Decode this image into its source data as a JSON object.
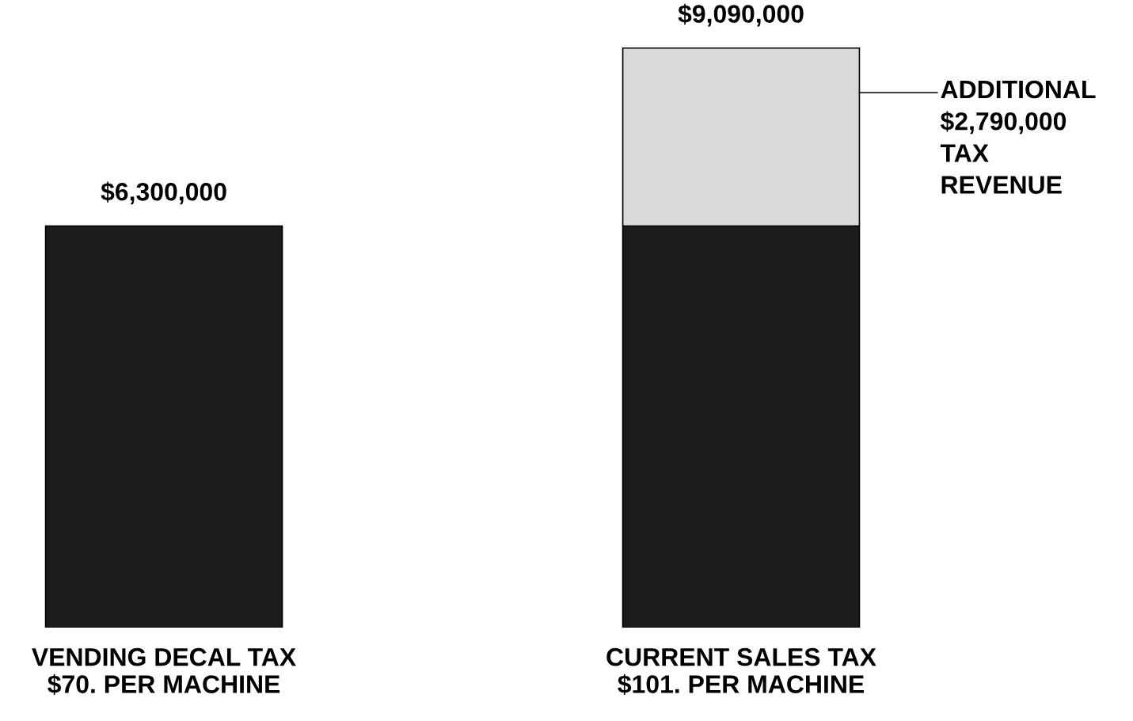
{
  "chart_data": {
    "type": "bar",
    "stacked": true,
    "tick_labels": "x",
    "categories": [
      "VENDING DECAL TAX\n$70. PER MACHINE",
      "CURRENT SALES TAX\n$101. PER MACHINE"
    ],
    "series": [
      {
        "color": "#1c1c1c",
        "values": [
          6300000,
          6300000
        ],
        "value_labels": [
          "$6,300,000",
          null
        ]
      },
      {
        "color": "#d9d9d9",
        "values": [
          null,
          2790000
        ],
        "value_labels": [
          null,
          "ADDITIONAL\n$2,790,000\nTAX\nREVENUE"
        ]
      }
    ],
    "totals": [
      null,
      "$9,090,000"
    ]
  }
}
